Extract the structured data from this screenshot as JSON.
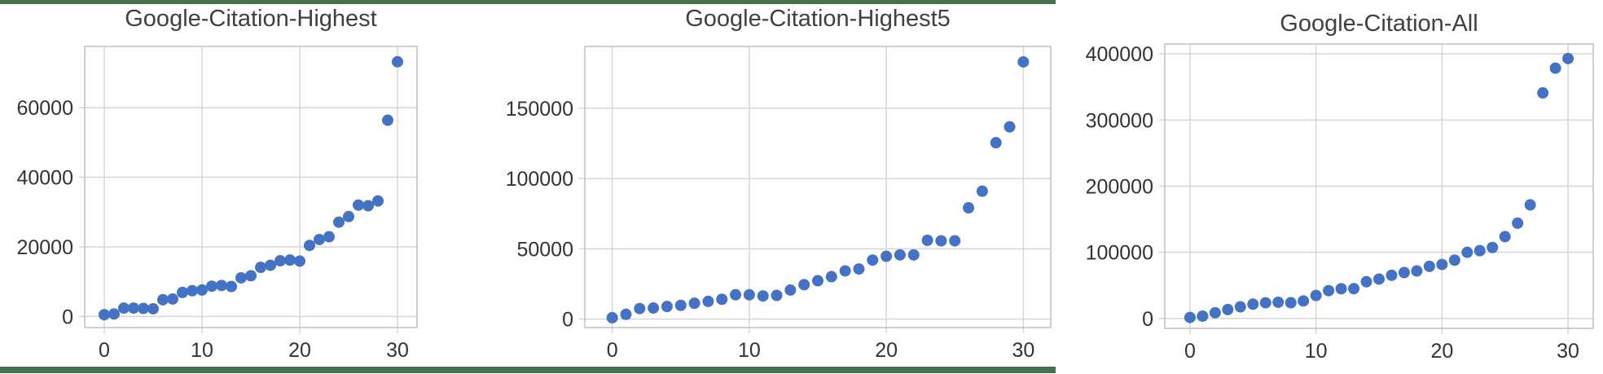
{
  "colors": {
    "border_green": "#47704E",
    "marker_blue": "#4472C4",
    "gridline_gray": "#D6D6D6",
    "spine_gray": "#BFBFBF",
    "title_gray": "#404040",
    "tick_label_dark": "#333333"
  },
  "chart_data": [
    {
      "type": "scatter",
      "title": "Google-Citation-Highest",
      "xlabel": "",
      "ylabel": "",
      "legend": "none",
      "grid": true,
      "x": [
        0,
        1,
        2,
        3,
        4,
        5,
        6,
        7,
        8,
        9,
        10,
        11,
        12,
        13,
        14,
        15,
        16,
        17,
        18,
        19,
        20,
        21,
        22,
        23,
        24,
        25,
        26,
        27,
        28,
        29,
        30
      ],
      "y": [
        500,
        700,
        2400,
        2400,
        2300,
        2200,
        4800,
        5000,
        6900,
        7400,
        7600,
        8700,
        8900,
        8600,
        11100,
        11700,
        14100,
        14700,
        16000,
        16200,
        15900,
        20400,
        22100,
        22900,
        27100,
        28700,
        32000,
        31800,
        33200,
        56400,
        73200
      ],
      "xticks": [
        0,
        10,
        20,
        30
      ],
      "yticks": [
        0,
        20000,
        40000,
        60000
      ],
      "xlim": [
        -2,
        32
      ],
      "ylim": [
        -3200,
        77600
      ]
    },
    {
      "type": "scatter",
      "title": "Google-Citation-Highest5",
      "xlabel": "",
      "ylabel": "",
      "legend": "none",
      "grid": true,
      "x": [
        0,
        1,
        2,
        3,
        4,
        5,
        6,
        7,
        8,
        9,
        10,
        11,
        12,
        13,
        14,
        15,
        16,
        17,
        18,
        19,
        20,
        21,
        22,
        23,
        24,
        25,
        26,
        27,
        28,
        29,
        30
      ],
      "y": [
        1000,
        3400,
        7500,
        7900,
        9000,
        9800,
        11300,
        12600,
        14100,
        17300,
        17300,
        16500,
        16900,
        20700,
        24500,
        27300,
        30200,
        34300,
        35700,
        42000,
        44700,
        45700,
        45700,
        56100,
        55700,
        55700,
        79200,
        91000,
        125500,
        136800,
        183000
      ],
      "xticks": [
        0,
        10,
        20,
        30
      ],
      "yticks": [
        0,
        50000,
        100000,
        150000
      ],
      "xlim": [
        -2,
        32
      ],
      "ylim": [
        -6000,
        194000
      ]
    },
    {
      "type": "scatter",
      "title": "Google-Citation-All",
      "xlabel": "",
      "ylabel": "",
      "legend": "none",
      "grid": true,
      "x": [
        0,
        1,
        2,
        3,
        4,
        5,
        6,
        7,
        8,
        9,
        10,
        11,
        12,
        13,
        14,
        15,
        16,
        17,
        18,
        19,
        20,
        21,
        22,
        23,
        24,
        25,
        26,
        27,
        28,
        29,
        30
      ],
      "y": [
        1500,
        3500,
        8600,
        13500,
        17600,
        21600,
        23700,
        24500,
        23800,
        26500,
        34700,
        42000,
        44900,
        45000,
        55500,
        59600,
        65300,
        69400,
        71800,
        78800,
        81600,
        88200,
        100000,
        102500,
        107300,
        123700,
        144100,
        171800,
        341000,
        378500,
        393000
      ],
      "xticks": [
        0,
        10,
        20,
        30
      ],
      "yticks": [
        0,
        100000,
        200000,
        300000,
        400000
      ],
      "xlim": [
        -2,
        32
      ],
      "ylim": [
        -15000,
        415000
      ]
    }
  ]
}
